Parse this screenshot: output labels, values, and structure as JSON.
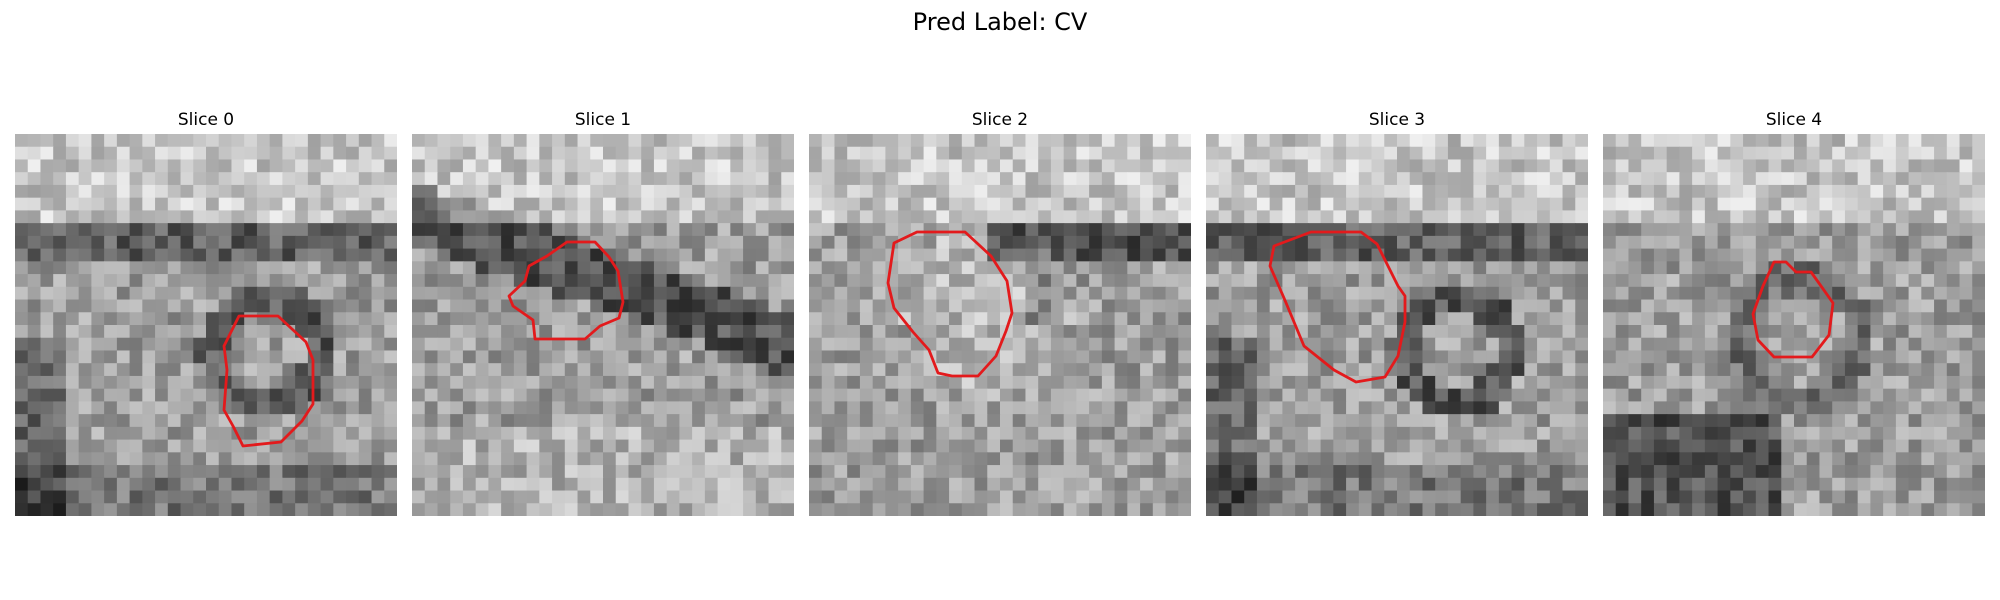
{
  "figure": {
    "title": "Pred Label: CV",
    "contour_color": "#e31a1c"
  },
  "slices": [
    {
      "title": "Slice 0",
      "seed": 11,
      "feature": "dark-ring",
      "image": "grayscale micrograph patch"
    },
    {
      "title": "Slice 1",
      "seed": 23,
      "feature": "dark-band",
      "image": "grayscale micrograph patch"
    },
    {
      "title": "Slice 2",
      "seed": 37,
      "feature": "light-blob",
      "image": "grayscale micrograph patch"
    },
    {
      "title": "Slice 3",
      "seed": 41,
      "feature": "dark-ring",
      "image": "grayscale micrograph patch"
    },
    {
      "title": "Slice 4",
      "seed": 59,
      "feature": "dark-low",
      "image": "grayscale micrograph patch"
    }
  ]
}
